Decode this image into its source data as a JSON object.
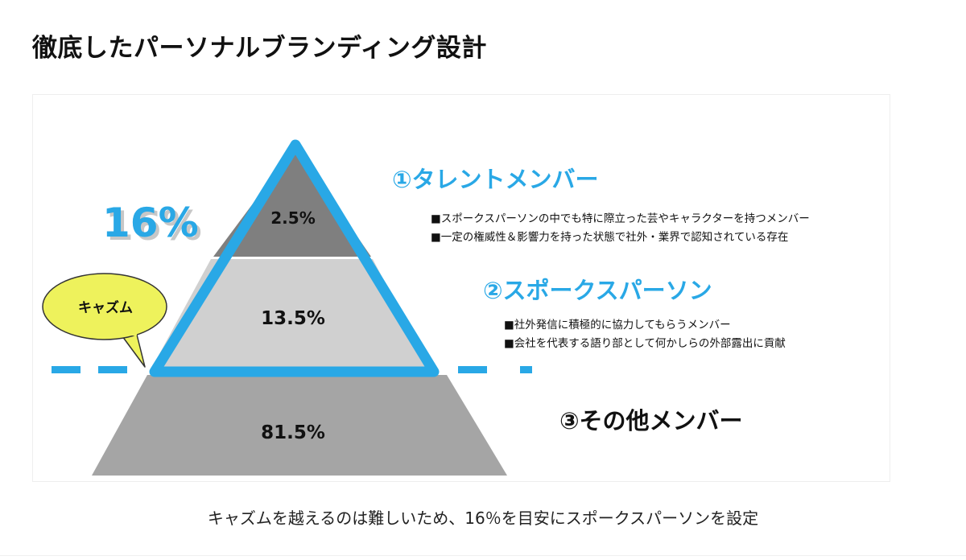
{
  "title": "徹底したパーソナルブランディング設計",
  "diagram": {
    "chasm_ratio": "16%",
    "chasm_label": "キャズム",
    "tiers": [
      {
        "value": "2.5%",
        "heading": "①タレントメンバー",
        "bullets": [
          "■スポークスパーソンの中でも特に際立った芸やキャラクターを持つメンバー",
          "■一定の権威性＆影響力を持った状態で社外・業界で認知されている存在"
        ]
      },
      {
        "value": "13.5%",
        "heading": "②スポークスパーソン",
        "bullets": [
          "■社外発信に積極的に協力してもらうメンバー",
          "■会社を代表する語り部として何かしらの外部露出に貢献"
        ]
      },
      {
        "value": "81.5%",
        "heading": "③その他メンバー",
        "bullets": []
      }
    ],
    "colors": {
      "accent_blue": "#29a8e6",
      "tier1_fill": "#7f7f7f",
      "tier2_fill": "#d0d0d0",
      "tier3_fill": "#a5a5a5",
      "bubble_fill": "#eef25c"
    }
  },
  "caption": "キャズムを越えるのは難しいため、16％を目安にスポークスパーソンを設定"
}
